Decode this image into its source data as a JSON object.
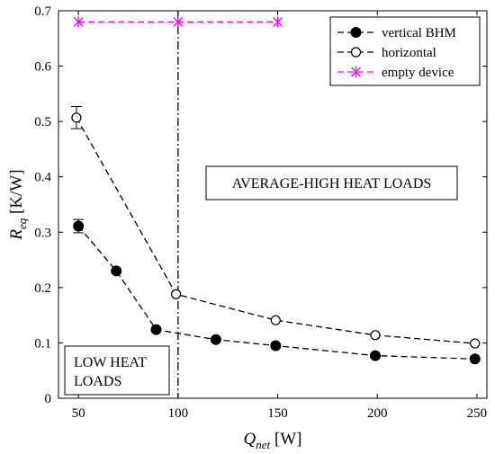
{
  "chart_data": {
    "type": "line",
    "x_axis": {
      "label_main": "Q",
      "label_sub": "net",
      "label_unit": " [W]",
      "range": [
        40,
        255
      ],
      "ticks": [
        50,
        100,
        150,
        200,
        250
      ]
    },
    "y_axis": {
      "label_main": "R",
      "label_sub": "eq",
      "label_unit": " [K/W]",
      "range": [
        0,
        0.7
      ],
      "ticks": [
        0,
        0.1,
        0.2,
        0.3,
        0.4,
        0.5,
        0.6,
        0.7
      ],
      "tick_labels": [
        "0",
        "0.1",
        "0.2",
        "0.3",
        "0.4",
        "0.5",
        "0.6",
        "0.7"
      ]
    },
    "grid": false,
    "legend": {
      "position": "top-right"
    },
    "series": [
      {
        "name": "vertical BHM",
        "marker": "filled-circle",
        "line": "dashed",
        "color": "#000000",
        "x": [
          50,
          69,
          89,
          119,
          149,
          199,
          249
        ],
        "y": [
          0.311,
          0.23,
          0.124,
          0.106,
          0.095,
          0.077,
          0.071
        ],
        "error": [
          0.012,
          0,
          0,
          0,
          0,
          0,
          0
        ]
      },
      {
        "name": "horizontal",
        "marker": "open-circle",
        "line": "dashed",
        "color": "#000000",
        "x": [
          49,
          99,
          149,
          199,
          249
        ],
        "y": [
          0.507,
          0.188,
          0.141,
          0.114,
          0.099
        ],
        "error": [
          0.02,
          0,
          0,
          0,
          0
        ]
      },
      {
        "name": "empty device",
        "marker": "cross",
        "line": "dashed",
        "color": "#ff00ff",
        "x": [
          50,
          100,
          150
        ],
        "y": [
          0.68,
          0.68,
          0.68
        ],
        "error": [
          0,
          0,
          0
        ]
      }
    ],
    "vertical_line": {
      "x": 100,
      "style": "dash-dot",
      "color": "#000000"
    },
    "annotations": [
      {
        "id": "high",
        "text": "AVERAGE-HIGH HEAT LOADS"
      },
      {
        "id": "low",
        "lines": [
          "LOW HEAT",
          "LOADS"
        ]
      }
    ]
  }
}
